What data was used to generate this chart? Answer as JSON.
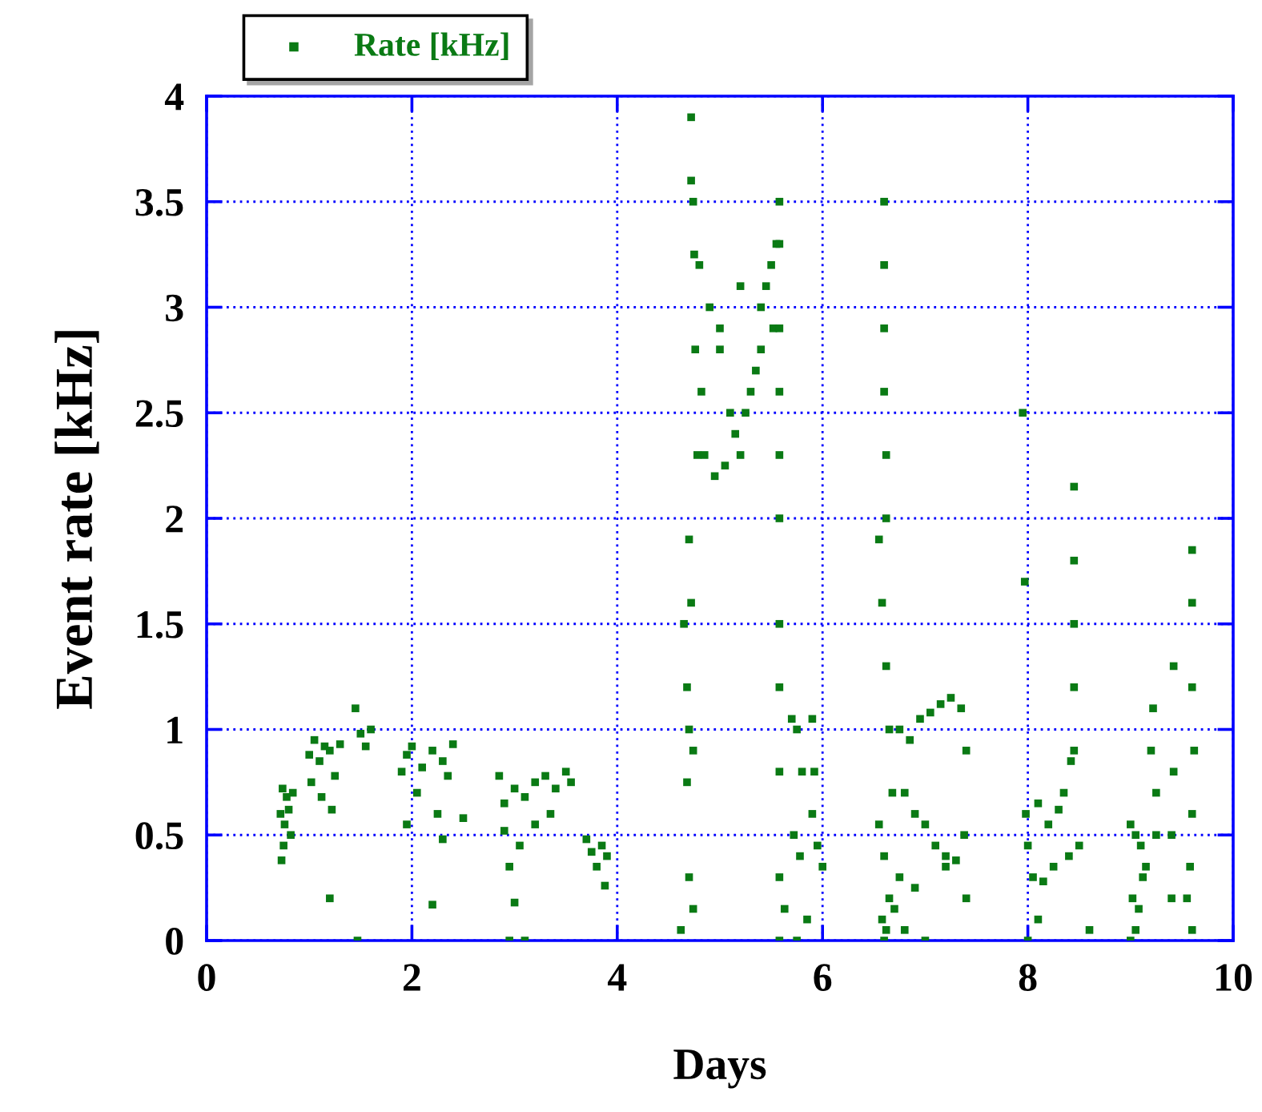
{
  "chart_data": {
    "type": "scatter",
    "xlabel": "Days",
    "ylabel": "Event rate [kHz]",
    "xlim": [
      0,
      10
    ],
    "ylim": [
      0,
      4
    ],
    "xticks": [
      0,
      2,
      4,
      6,
      8,
      10
    ],
    "yticks": [
      0,
      0.5,
      1,
      1.5,
      2,
      2.5,
      3,
      3.5,
      4
    ],
    "grid": true,
    "legend": "top left",
    "marker": "square",
    "series": [
      {
        "name": "Rate [kHz]",
        "color": "#0a7a14",
        "x": [
          0.72,
          0.74,
          0.76,
          0.78,
          0.8,
          0.82,
          0.84,
          0.75,
          0.73,
          1.0,
          1.05,
          1.1,
          1.15,
          1.2,
          1.25,
          1.3,
          1.02,
          1.12,
          1.22,
          1.45,
          1.5,
          1.2,
          1.47,
          1.55,
          1.6,
          1.9,
          1.95,
          2.0,
          2.1,
          2.2,
          2.3,
          2.35,
          2.4,
          2.05,
          2.25,
          2.3,
          1.95,
          2.2,
          2.5,
          2.85,
          2.9,
          3.0,
          3.1,
          3.2,
          3.3,
          3.4,
          3.5,
          3.55,
          2.9,
          3.05,
          3.2,
          3.35,
          2.95,
          3.0,
          2.95,
          3.1,
          3.7,
          3.75,
          3.8,
          3.85,
          3.9,
          3.88,
          4.62,
          4.65,
          4.68,
          4.7,
          4.7,
          4.72,
          4.72,
          4.74,
          4.75,
          4.76,
          4.78,
          4.7,
          4.72,
          4.68,
          4.74,
          4.74,
          4.8,
          4.9,
          5.0,
          5.1,
          5.2,
          5.3,
          5.4,
          5.5,
          5.55,
          4.85,
          4.95,
          5.05,
          5.15,
          5.25,
          5.35,
          5.45,
          5.52,
          4.82,
          5.0,
          5.2,
          5.4,
          5.58,
          5.58,
          5.58,
          5.58,
          5.58,
          5.58,
          5.58,
          5.58,
          5.58,
          5.58,
          5.58,
          5.7,
          5.75,
          5.8,
          5.72,
          5.78,
          5.9,
          5.92,
          5.9,
          5.95,
          6.0,
          5.85,
          5.63,
          5.75,
          6.6,
          6.6,
          6.6,
          6.6,
          6.62,
          6.62,
          6.55,
          6.58,
          6.62,
          6.65,
          6.68,
          6.6,
          6.55,
          6.65,
          6.58,
          6.62,
          6.6,
          6.75,
          6.85,
          6.95,
          7.05,
          7.15,
          7.25,
          7.35,
          7.4,
          6.8,
          6.9,
          7.0,
          7.1,
          7.2,
          7.3,
          7.38,
          6.75,
          6.9,
          7.2,
          7.4,
          6.7,
          6.8,
          7.0,
          7.95,
          7.97,
          7.98,
          8.0,
          8.1,
          8.2,
          8.3,
          8.4,
          8.05,
          8.15,
          8.25,
          8.35,
          8.42,
          8.45,
          8.45,
          8.45,
          8.45,
          8.45,
          8.5,
          8.6,
          8.1,
          8.0,
          9.0,
          9.05,
          9.1,
          9.15,
          9.02,
          9.08,
          9.12,
          9.05,
          9.0,
          9.2,
          9.22,
          9.25,
          9.25,
          9.4,
          9.42,
          9.42,
          9.4,
          9.6,
          9.6,
          9.6,
          9.62,
          9.6,
          9.58,
          9.55,
          9.6
        ],
        "values": [
          0.6,
          0.72,
          0.55,
          0.68,
          0.62,
          0.5,
          0.7,
          0.45,
          0.38,
          0.88,
          0.95,
          0.85,
          0.92,
          0.9,
          0.78,
          0.93,
          0.75,
          0.68,
          0.62,
          1.1,
          0.98,
          0.2,
          0.0,
          0.92,
          1.0,
          0.8,
          0.88,
          0.92,
          0.82,
          0.9,
          0.85,
          0.78,
          0.93,
          0.7,
          0.6,
          0.48,
          0.55,
          0.17,
          0.58,
          0.78,
          0.65,
          0.72,
          0.68,
          0.75,
          0.78,
          0.72,
          0.8,
          0.75,
          0.52,
          0.45,
          0.55,
          0.6,
          0.35,
          0.18,
          0.0,
          0.0,
          0.48,
          0.42,
          0.35,
          0.45,
          0.4,
          0.26,
          0.05,
          1.5,
          0.75,
          0.3,
          1.0,
          3.9,
          3.6,
          3.5,
          3.25,
          2.8,
          2.3,
          1.9,
          1.6,
          1.2,
          0.9,
          0.15,
          3.2,
          3.0,
          2.8,
          2.5,
          2.3,
          2.6,
          3.0,
          3.2,
          3.3,
          2.3,
          2.2,
          2.25,
          2.4,
          2.5,
          2.7,
          3.1,
          2.9,
          2.6,
          2.9,
          3.1,
          2.8,
          3.5,
          3.3,
          2.9,
          2.6,
          2.3,
          2.0,
          1.5,
          1.2,
          0.8,
          0.3,
          0.0,
          1.05,
          1.0,
          0.8,
          0.5,
          0.4,
          1.05,
          0.8,
          0.6,
          0.45,
          0.35,
          0.1,
          0.15,
          0.0,
          3.5,
          3.2,
          2.9,
          2.6,
          2.3,
          2.0,
          1.9,
          1.6,
          1.3,
          1.0,
          0.7,
          0.4,
          0.55,
          0.2,
          0.1,
          0.05,
          0.0,
          1.0,
          0.95,
          1.05,
          1.08,
          1.12,
          1.15,
          1.1,
          0.9,
          0.7,
          0.6,
          0.55,
          0.45,
          0.4,
          0.38,
          0.5,
          0.3,
          0.25,
          0.35,
          0.2,
          0.15,
          0.05,
          0.0,
          2.5,
          1.7,
          0.6,
          0.45,
          0.65,
          0.55,
          0.62,
          0.4,
          0.3,
          0.28,
          0.35,
          0.7,
          0.85,
          2.15,
          1.8,
          1.5,
          1.2,
          0.9,
          0.45,
          0.05,
          0.1,
          0.0,
          0.55,
          0.5,
          0.45,
          0.35,
          0.2,
          0.15,
          0.3,
          0.05,
          0.0,
          0.9,
          1.1,
          0.7,
          0.5,
          0.5,
          1.3,
          0.8,
          0.2,
          1.85,
          1.6,
          1.2,
          0.9,
          0.6,
          0.35,
          0.2,
          0.05
        ]
      }
    ]
  }
}
